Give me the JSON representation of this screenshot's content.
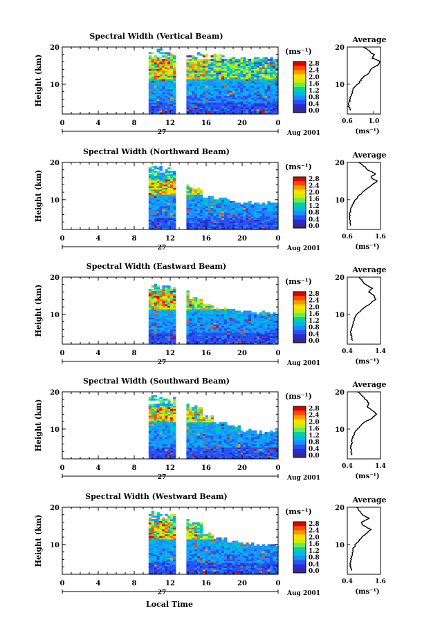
{
  "colorbar": {
    "unit": "(ms⁻¹)",
    "ticks": [
      "2.8",
      "2.4",
      "2.0",
      "1.6",
      "1.2",
      "0.8",
      "0.4",
      "0.0"
    ],
    "colors": [
      "#e00000",
      "#ff4a00",
      "#ff9a00",
      "#ffe000",
      "#c8f000",
      "#6ee85a",
      "#00d2a0",
      "#00b8e8",
      "#1e8cff",
      "#2a52ee",
      "#2a2ad0",
      "#3a2a88"
    ]
  },
  "footer": {
    "xlabel": "Local Time"
  },
  "chart_data": [
    {
      "type": "heatmap",
      "title": "Spectral Width (Vertical Beam)",
      "ylabel": "Height (km)",
      "x_ticks": [
        "0",
        "4",
        "8",
        "12",
        "16",
        "20",
        "0"
      ],
      "day_label": "27",
      "date_label": "Aug 2001",
      "xlim": [
        0,
        24
      ],
      "ylim": [
        2,
        20
      ],
      "y_ticks": [
        "20",
        "10"
      ],
      "data_columns": [
        [
          9.6,
          12.6
        ],
        [
          13.8,
          24.0
        ]
      ],
      "top_height": [
        19.0,
        18.6,
        18.4,
        18.0,
        17.6,
        17.6,
        17.2,
        16.8,
        16.8,
        17.0
      ],
      "hot_layer": [
        11.0,
        16.5
      ],
      "avg": {
        "title": "Average",
        "xlim": [
          0.6,
          1.1
        ],
        "x_ticks": [
          "0.6",
          "1.0"
        ],
        "xlabel": "(ms⁻¹)",
        "height": [
          3,
          4,
          5,
          6,
          7,
          8,
          9,
          10,
          11,
          12,
          13,
          14,
          15,
          16,
          17,
          18,
          19,
          20
        ],
        "width": [
          0.65,
          0.62,
          0.63,
          0.64,
          0.66,
          0.68,
          0.7,
          0.76,
          0.8,
          0.85,
          0.92,
          0.95,
          1.05,
          1.1,
          0.98,
          1.0,
          0.92,
          0.85
        ]
      }
    },
    {
      "type": "heatmap",
      "title": "Spectral Width (Northward Beam)",
      "ylabel": "Height (km)",
      "x_ticks": [
        "0",
        "4",
        "8",
        "12",
        "16",
        "20",
        "0"
      ],
      "day_label": "27",
      "date_label": "Aug 2001",
      "xlim": [
        0,
        24
      ],
      "ylim": [
        2,
        20
      ],
      "y_ticks": [
        "20",
        "10"
      ],
      "data_columns": [
        [
          9.6,
          12.6
        ],
        [
          13.8,
          24.0
        ]
      ],
      "top_height": [
        18.5,
        18.0,
        14.0,
        13.0,
        10.5,
        10.0,
        9.5,
        9.0,
        8.8,
        9.0
      ],
      "hot_layer": [
        11.0,
        15.0
      ],
      "avg": {
        "title": "Average",
        "xlim": [
          0.6,
          1.6
        ],
        "x_ticks": [
          "0.6",
          "1.6"
        ],
        "xlabel": "(ms⁻¹)",
        "height": [
          3,
          4,
          5,
          6,
          7,
          8,
          9,
          10,
          11,
          12,
          13,
          14,
          15,
          16,
          17,
          18,
          19,
          20
        ],
        "width": [
          0.7,
          0.68,
          0.66,
          0.67,
          0.7,
          0.72,
          0.78,
          0.85,
          0.95,
          1.05,
          1.2,
          1.35,
          1.5,
          1.3,
          1.45,
          1.2,
          1.1,
          0.95
        ]
      }
    },
    {
      "type": "heatmap",
      "title": "Spectral Width (Eastward Beam)",
      "ylabel": "Height (km)",
      "x_ticks": [
        "0",
        "4",
        "8",
        "12",
        "16",
        "20",
        "0"
      ],
      "day_label": "27",
      "date_label": "Aug 2001",
      "xlim": [
        0,
        24
      ],
      "ylim": [
        2,
        20
      ],
      "y_ticks": [
        "20",
        "10"
      ],
      "data_columns": [
        [
          9.6,
          12.6
        ],
        [
          13.8,
          24.0
        ]
      ],
      "top_height": [
        18.0,
        17.5,
        16.0,
        14.0,
        12.5,
        11.5,
        11.0,
        10.5,
        10.2,
        10.0
      ],
      "hot_layer": [
        11.0,
        15.5
      ],
      "avg": {
        "title": "Average",
        "xlim": [
          0.4,
          1.4
        ],
        "x_ticks": [
          "0.4",
          "1.4"
        ],
        "xlabel": "(ms⁻¹)",
        "height": [
          3,
          4,
          5,
          6,
          7,
          8,
          9,
          10,
          11,
          12,
          13,
          14,
          15,
          16,
          17,
          18,
          19,
          20
        ],
        "width": [
          0.55,
          0.52,
          0.5,
          0.52,
          0.56,
          0.6,
          0.62,
          0.7,
          0.8,
          0.95,
          1.1,
          1.25,
          1.2,
          1.05,
          1.15,
          0.95,
          0.85,
          0.75
        ]
      }
    },
    {
      "type": "heatmap",
      "title": "Spectral Width (Southward Beam)",
      "ylabel": "Height (km)",
      "x_ticks": [
        "0",
        "4",
        "8",
        "12",
        "16",
        "20",
        "0"
      ],
      "day_label": "27",
      "date_label": "Aug 2001",
      "xlim": [
        0,
        24
      ],
      "ylim": [
        2,
        20
      ],
      "y_ticks": [
        "20",
        "10"
      ],
      "data_columns": [
        [
          9.6,
          12.6
        ],
        [
          13.8,
          24.0
        ]
      ],
      "top_height": [
        18.8,
        18.0,
        17.5,
        16.0,
        13.0,
        11.5,
        10.5,
        9.5,
        9.0,
        9.2
      ],
      "hot_layer": [
        11.5,
        15.5
      ],
      "avg": {
        "title": "Average",
        "xlim": [
          0.4,
          1.4
        ],
        "x_ticks": [
          "0.4",
          "1.4"
        ],
        "xlabel": "(ms⁻¹)",
        "height": [
          3,
          4,
          5,
          6,
          7,
          8,
          9,
          10,
          11,
          12,
          13,
          14,
          15,
          16,
          17,
          18,
          19,
          20
        ],
        "width": [
          0.55,
          0.52,
          0.5,
          0.53,
          0.55,
          0.58,
          0.62,
          0.7,
          0.8,
          0.95,
          1.15,
          1.3,
          1.15,
          1.0,
          1.05,
          0.95,
          0.85,
          0.7
        ]
      }
    },
    {
      "type": "heatmap",
      "title": "Spectral Width (Westward Beam)",
      "ylabel": "Height (km)",
      "x_ticks": [
        "0",
        "4",
        "8",
        "12",
        "16",
        "20",
        "0"
      ],
      "day_label": "27",
      "date_label": "Aug 2001",
      "xlim": [
        0,
        24
      ],
      "ylim": [
        2,
        20
      ],
      "y_ticks": [
        "20",
        "10"
      ],
      "data_columns": [
        [
          9.6,
          12.6
        ],
        [
          13.8,
          24.0
        ]
      ],
      "top_height": [
        18.5,
        17.8,
        16.5,
        15.5,
        13.0,
        11.5,
        10.5,
        10.0,
        9.8,
        10.0
      ],
      "hot_layer": [
        11.0,
        16.0
      ],
      "avg": {
        "title": "Average",
        "xlim": [
          0.4,
          1.6
        ],
        "x_ticks": [
          "0.4",
          "1.6"
        ],
        "xlabel": "(ms⁻¹)",
        "height": [
          3,
          4,
          5,
          6,
          7,
          8,
          9,
          10,
          11,
          12,
          13,
          14,
          15,
          16,
          17,
          18,
          19,
          20
        ],
        "width": [
          0.55,
          0.52,
          0.5,
          0.53,
          0.56,
          0.6,
          0.62,
          0.7,
          0.82,
          0.95,
          1.1,
          1.25,
          1.0,
          0.9,
          1.2,
          0.95,
          0.85,
          0.75
        ]
      }
    }
  ]
}
